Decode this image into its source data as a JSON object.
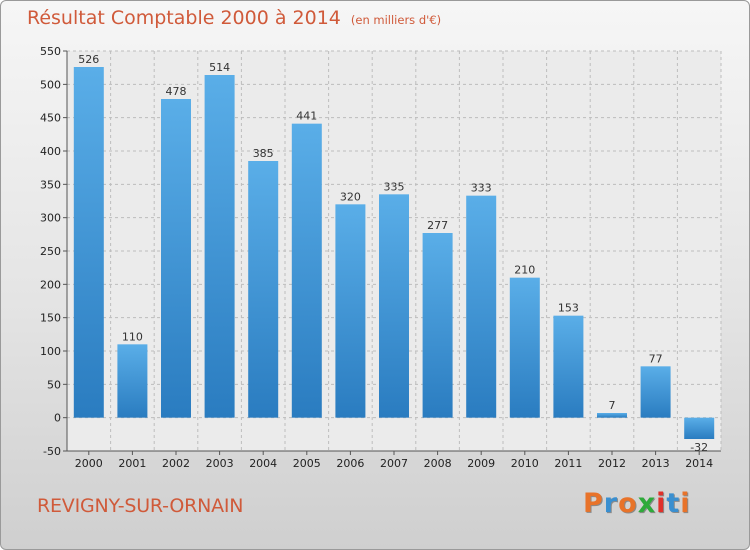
{
  "header": {
    "title": "Résultat Comptable 2000 à 2014",
    "subtitle": "(en milliers d'€)"
  },
  "footer": {
    "commune": "REVIGNY-SUR-ORNAIN",
    "logo": "Proxiti"
  },
  "colors": {
    "title": "#d05a3a",
    "bar_top": "#5aaee8",
    "bar_bottom": "#2a7cc0",
    "logo_letters": [
      "#e8732a",
      "#3a8fd0",
      "#e8732a",
      "#2eaa3a",
      "#e0302a",
      "#3a8fd0",
      "#e8732a"
    ]
  },
  "chart_data": {
    "type": "bar",
    "title": "Résultat Comptable 2000 à 2014",
    "subtitle": "(en milliers d'€)",
    "categories": [
      "2000",
      "2001",
      "2002",
      "2003",
      "2004",
      "2005",
      "2006",
      "2007",
      "2008",
      "2009",
      "2010",
      "2011",
      "2012",
      "2013",
      "2014"
    ],
    "values": [
      526,
      110,
      478,
      514,
      385,
      441,
      320,
      335,
      277,
      333,
      210,
      153,
      7,
      77,
      -32
    ],
    "ylim": [
      -50,
      550
    ],
    "yticks": [
      -50,
      0,
      50,
      100,
      150,
      200,
      250,
      300,
      350,
      400,
      450,
      500,
      550
    ],
    "grid": true
  }
}
